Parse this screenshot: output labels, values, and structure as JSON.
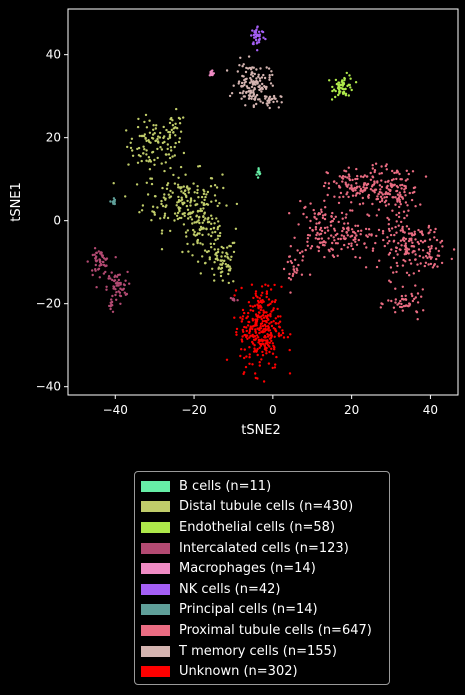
{
  "chart_data": {
    "type": "scatter",
    "title": "",
    "xlabel": "tSNE2",
    "ylabel": "tSNE1",
    "xlim": [
      -52,
      47
    ],
    "ylim": [
      -42,
      51
    ],
    "xticks": [
      -40,
      -20,
      0,
      20,
      40
    ],
    "yticks": [
      -40,
      -20,
      0,
      20,
      40
    ],
    "xtick_labels": [
      "−40",
      "−20",
      "0",
      "20",
      "40"
    ],
    "ytick_labels": [
      "−40",
      "−20",
      "0",
      "20",
      "40"
    ],
    "grid": false,
    "legend_position": "bottom, outside plot",
    "series": [
      {
        "name": "B cells (n=11)",
        "color": "#66eea6",
        "clusters": [
          {
            "x": -3.5,
            "y": 11.5,
            "sx": 0.3,
            "sy": 0.8,
            "n": 11
          }
        ]
      },
      {
        "name": "Distal tubule cells (n=430)",
        "color": "#c0cc6a",
        "clusters": [
          {
            "x": -30,
            "y": 18,
            "sx": 3.5,
            "sy": 3,
            "n": 100
          },
          {
            "x": -23,
            "y": 5,
            "sx": 5,
            "sy": 3.5,
            "n": 160
          },
          {
            "x": -18,
            "y": -2,
            "sx": 2.5,
            "sy": 3,
            "n": 80
          },
          {
            "x": -13,
            "y": -10,
            "sx": 2,
            "sy": 3,
            "n": 70
          },
          {
            "x": -25,
            "y": 22,
            "sx": 1.5,
            "sy": 2,
            "n": 20
          }
        ]
      },
      {
        "name": "Endothelial cells (n=58)",
        "color": "#aee84a",
        "clusters": [
          {
            "x": 18,
            "y": 32.5,
            "sx": 1.3,
            "sy": 1.3,
            "n": 58
          }
        ]
      },
      {
        "name": "Intercalated cells (n=123)",
        "color": "#b34a72",
        "clusters": [
          {
            "x": -44,
            "y": -10,
            "sx": 1.3,
            "sy": 1.5,
            "n": 55
          },
          {
            "x": -39.5,
            "y": -16,
            "sx": 1.3,
            "sy": 1.8,
            "n": 50
          },
          {
            "x": -41,
            "y": -20.5,
            "sx": 0.6,
            "sy": 0.8,
            "n": 10
          },
          {
            "x": -10,
            "y": -19,
            "sx": 0.6,
            "sy": 0.4,
            "n": 8
          }
        ]
      },
      {
        "name": "Macrophages (n=14)",
        "color": "#ef8bc4",
        "clusters": [
          {
            "x": -15.5,
            "y": 35.5,
            "sx": 0.3,
            "sy": 0.5,
            "n": 14
          }
        ]
      },
      {
        "name": "NK cells (n=42)",
        "color": "#a45ff5",
        "clusters": [
          {
            "x": -3.8,
            "y": 44.5,
            "sx": 0.9,
            "sy": 1.2,
            "n": 42
          }
        ]
      },
      {
        "name": "Principal cells (n=14)",
        "color": "#5f9f99",
        "clusters": [
          {
            "x": -40.5,
            "y": 4.5,
            "sx": 0.25,
            "sy": 0.5,
            "n": 14
          }
        ]
      },
      {
        "name": "Proximal tubule cells (n=647)",
        "color": "#ea6c82",
        "clusters": [
          {
            "x": 12,
            "y": -2,
            "sx": 3,
            "sy": 3.5,
            "n": 110
          },
          {
            "x": 22,
            "y": 8,
            "sx": 4,
            "sy": 2.5,
            "n": 130
          },
          {
            "x": 31,
            "y": 7,
            "sx": 3,
            "sy": 3,
            "n": 110
          },
          {
            "x": 35,
            "y": -6,
            "sx": 4,
            "sy": 3,
            "n": 150
          },
          {
            "x": 21,
            "y": -4,
            "sx": 3,
            "sy": 2,
            "n": 60
          },
          {
            "x": 34,
            "y": -20,
            "sx": 2.5,
            "sy": 1.5,
            "n": 47
          },
          {
            "x": 5,
            "y": -12,
            "sx": 1.5,
            "sy": 2.5,
            "n": 25
          },
          {
            "x": 40,
            "y": -10,
            "sx": 1,
            "sy": 1.5,
            "n": 15
          }
        ]
      },
      {
        "name": "T memory cells (n=155)",
        "color": "#d4b4b0",
        "clusters": [
          {
            "x": -5,
            "y": 33,
            "sx": 2.2,
            "sy": 2.5,
            "n": 130
          },
          {
            "x": -1,
            "y": 29,
            "sx": 1.5,
            "sy": 0.8,
            "n": 25
          }
        ]
      },
      {
        "name": "Unknown (n=302)",
        "color": "#ff0000",
        "clusters": [
          {
            "x": -3,
            "y": -26,
            "sx": 2.6,
            "sy": 5,
            "n": 302
          }
        ]
      }
    ]
  }
}
